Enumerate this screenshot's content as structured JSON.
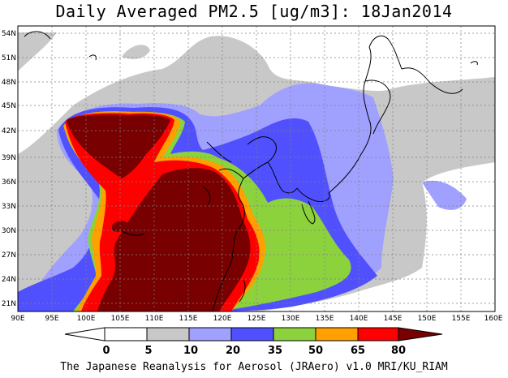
{
  "title": "Daily Averaged PM2.5 [ug/m3]: 18Jan2014",
  "footer": "The Japanese Reanalysis for Aerosol (JRAero) v1.0 MRI/KU_RIAM",
  "chart_data": {
    "type": "heatmap",
    "title": "Daily Averaged PM2.5 [ug/m3]: 18Jan2014",
    "x_range": [
      90,
      160
    ],
    "y_range": [
      19.5,
      55
    ],
    "x_ticks": [
      "90E",
      "95E",
      "100E",
      "105E",
      "110E",
      "115E",
      "120E",
      "125E",
      "130E",
      "135E",
      "140E",
      "145E",
      "150E",
      "155E",
      "160E"
    ],
    "y_ticks": [
      "21N",
      "24N",
      "27N",
      "30N",
      "33N",
      "36N",
      "39N",
      "42N",
      "45N",
      "48N",
      "51N",
      "54N"
    ],
    "colorbar": {
      "labels": [
        "0",
        "5",
        "10",
        "20",
        "35",
        "50",
        "65",
        "80"
      ],
      "colors": [
        "#ffffff",
        "#ffffff",
        "#c8c8c8",
        "#a0a0ff",
        "#5050ff",
        "#8cd23c",
        "#ffa000",
        "#ff0000",
        "#780000"
      ]
    },
    "grid": true
  }
}
